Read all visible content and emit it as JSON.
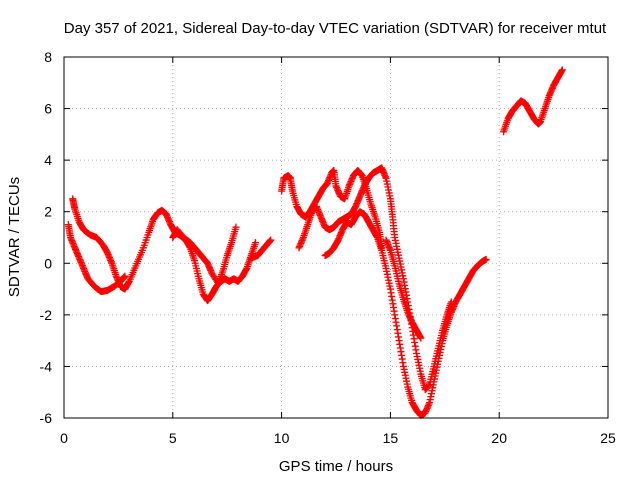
{
  "chart_data": {
    "type": "scatter",
    "title": "Day 357 of 2021, Sidereal Day-to-day VTEC variation (SDTVAR) for receiver mtut",
    "xlabel": "GPS time / hours",
    "ylabel": "SDTVAR / TECUs",
    "xlim": [
      0,
      25
    ],
    "ylim": [
      -6,
      8
    ],
    "xticks": [
      0,
      5,
      10,
      15,
      20,
      25
    ],
    "yticks": [
      -6,
      -4,
      -2,
      0,
      2,
      4,
      6,
      8
    ],
    "grid": true,
    "marker": "plus",
    "color": "#ff0000",
    "series": [
      {
        "segments": [
          [
            [
              0.2,
              1.5
            ],
            [
              0.3,
              1.0
            ],
            [
              0.5,
              0.6
            ],
            [
              0.7,
              0.2
            ],
            [
              0.9,
              -0.2
            ],
            [
              1.1,
              -0.6
            ],
            [
              1.4,
              -0.9
            ],
            [
              1.7,
              -1.1
            ],
            [
              2.0,
              -1.05
            ],
            [
              2.3,
              -0.9
            ],
            [
              2.6,
              -0.7
            ],
            [
              2.8,
              -0.5
            ]
          ],
          [
            [
              0.4,
              2.5
            ],
            [
              0.5,
              2.1
            ],
            [
              0.7,
              1.6
            ],
            [
              0.9,
              1.3
            ],
            [
              1.2,
              1.1
            ],
            [
              1.5,
              1.0
            ],
            [
              1.8,
              0.7
            ],
            [
              2.0,
              0.4
            ],
            [
              2.2,
              0.0
            ],
            [
              2.4,
              -0.5
            ],
            [
              2.6,
              -0.9
            ],
            [
              2.8,
              -1.0
            ],
            [
              3.0,
              -0.7
            ],
            [
              3.3,
              -0.1
            ],
            [
              3.6,
              0.5
            ],
            [
              3.9,
              1.2
            ],
            [
              4.1,
              1.7
            ],
            [
              4.3,
              1.95
            ],
            [
              4.5,
              2.05
            ],
            [
              4.7,
              1.9
            ],
            [
              4.9,
              1.5
            ],
            [
              5.1,
              1.2
            ],
            [
              5.3,
              1.1
            ],
            [
              5.6,
              0.9
            ],
            [
              5.8,
              0.6
            ],
            [
              6.0,
              0.1
            ],
            [
              6.2,
              -0.6
            ],
            [
              6.4,
              -1.2
            ],
            [
              6.6,
              -1.45
            ],
            [
              6.8,
              -1.2
            ],
            [
              7.0,
              -0.9
            ],
            [
              7.2,
              -0.7
            ],
            [
              7.4,
              -0.6
            ],
            [
              7.6,
              -0.7
            ],
            [
              7.8,
              -0.6
            ],
            [
              8.0,
              -0.7
            ],
            [
              8.2,
              -0.5
            ],
            [
              8.4,
              -0.2
            ],
            [
              8.6,
              0.3
            ],
            [
              8.8,
              0.8
            ]
          ],
          [
            [
              5.0,
              1.0
            ],
            [
              5.2,
              1.3
            ],
            [
              5.5,
              1.0
            ],
            [
              5.8,
              0.8
            ],
            [
              6.0,
              0.6
            ],
            [
              6.2,
              0.4
            ],
            [
              6.4,
              0.2
            ],
            [
              6.6,
              0.0
            ],
            [
              6.8,
              -0.4
            ],
            [
              7.1,
              -0.8
            ],
            [
              7.3,
              -0.3
            ],
            [
              7.5,
              0.3
            ],
            [
              7.7,
              0.8
            ],
            [
              7.9,
              1.4
            ]
          ],
          [
            [
              8.6,
              0.2
            ],
            [
              8.9,
              0.3
            ],
            [
              9.1,
              0.5
            ],
            [
              9.3,
              0.7
            ],
            [
              9.5,
              0.9
            ]
          ],
          [
            [
              10.0,
              2.8
            ],
            [
              10.1,
              3.3
            ],
            [
              10.3,
              3.4
            ],
            [
              10.4,
              3.3
            ],
            [
              10.5,
              2.8
            ],
            [
              10.7,
              2.2
            ],
            [
              10.9,
              1.9
            ],
            [
              11.1,
              1.8
            ],
            [
              11.3,
              2.0
            ],
            [
              11.5,
              2.3
            ],
            [
              11.7,
              2.6
            ],
            [
              11.9,
              2.9
            ],
            [
              12.1,
              3.1
            ],
            [
              12.3,
              3.5
            ],
            [
              12.4,
              3.6
            ],
            [
              12.5,
              3.0
            ],
            [
              12.7,
              2.6
            ],
            [
              12.9,
              2.5
            ],
            [
              13.1,
              3.0
            ],
            [
              13.3,
              3.4
            ],
            [
              13.5,
              3.6
            ],
            [
              13.7,
              3.4
            ],
            [
              13.9,
              2.9
            ],
            [
              14.1,
              2.3
            ],
            [
              14.3,
              1.8
            ],
            [
              14.5,
              1.2
            ],
            [
              14.6,
              0.6
            ]
          ],
          [
            [
              10.8,
              0.6
            ],
            [
              11.0,
              1.0
            ],
            [
              11.2,
              1.5
            ],
            [
              11.4,
              2.0
            ],
            [
              11.6,
              2.2
            ],
            [
              11.8,
              1.8
            ],
            [
              12.0,
              1.4
            ],
            [
              12.2,
              1.3
            ],
            [
              12.4,
              1.4
            ],
            [
              12.6,
              1.6
            ],
            [
              12.8,
              1.7
            ],
            [
              13.0,
              1.8
            ],
            [
              13.2,
              1.9
            ],
            [
              13.4,
              2.2
            ],
            [
              13.6,
              2.6
            ],
            [
              13.8,
              3.0
            ],
            [
              14.0,
              3.3
            ],
            [
              14.2,
              3.5
            ],
            [
              14.4,
              3.6
            ],
            [
              14.6,
              3.7
            ],
            [
              14.8,
              3.3
            ],
            [
              15.0,
              2.5
            ],
            [
              15.1,
              1.8
            ],
            [
              15.2,
              1.0
            ],
            [
              15.4,
              0.2
            ],
            [
              15.6,
              -0.6
            ],
            [
              15.8,
              -1.5
            ],
            [
              16.0,
              -2.5
            ],
            [
              16.2,
              -3.5
            ],
            [
              16.4,
              -4.3
            ],
            [
              16.6,
              -4.9
            ],
            [
              16.8,
              -4.7
            ],
            [
              17.0,
              -4.0
            ],
            [
              17.2,
              -3.3
            ],
            [
              17.4,
              -2.6
            ],
            [
              17.6,
              -2.0
            ],
            [
              17.8,
              -1.5
            ]
          ],
          [
            [
              12.0,
              0.3
            ],
            [
              12.2,
              0.4
            ],
            [
              12.4,
              0.6
            ],
            [
              12.6,
              0.9
            ],
            [
              12.8,
              1.3
            ],
            [
              13.0,
              1.6
            ],
            [
              13.2,
              1.5
            ],
            [
              13.4,
              1.8
            ],
            [
              13.6,
              2.0
            ],
            [
              13.8,
              1.9
            ],
            [
              14.0,
              1.6
            ],
            [
              14.2,
              1.3
            ],
            [
              14.4,
              1.0
            ],
            [
              14.6,
              0.5
            ],
            [
              14.8,
              -0.2
            ],
            [
              15.0,
              -1.0
            ],
            [
              15.2,
              -2.0
            ],
            [
              15.4,
              -3.0
            ],
            [
              15.6,
              -4.0
            ],
            [
              15.8,
              -4.8
            ],
            [
              16.0,
              -5.4
            ],
            [
              16.2,
              -5.7
            ],
            [
              16.4,
              -5.9
            ],
            [
              16.6,
              -5.8
            ],
            [
              16.8,
              -5.4
            ],
            [
              17.0,
              -4.6
            ],
            [
              17.2,
              -3.8
            ],
            [
              17.4,
              -3.0
            ],
            [
              17.6,
              -2.4
            ],
            [
              17.8,
              -1.9
            ],
            [
              18.0,
              -1.5
            ],
            [
              18.2,
              -1.2
            ],
            [
              18.4,
              -0.9
            ],
            [
              18.6,
              -0.6
            ],
            [
              18.8,
              -0.3
            ],
            [
              19.0,
              -0.1
            ],
            [
              19.2,
              0.05
            ],
            [
              19.4,
              0.15
            ]
          ],
          [
            [
              14.8,
              0.9
            ],
            [
              15.0,
              0.5
            ],
            [
              15.2,
              -0.1
            ],
            [
              15.4,
              -0.8
            ],
            [
              15.6,
              -1.4
            ],
            [
              15.8,
              -1.9
            ],
            [
              16.0,
              -2.3
            ],
            [
              16.2,
              -2.6
            ],
            [
              16.4,
              -2.9
            ]
          ],
          [
            [
              20.2,
              5.1
            ],
            [
              20.4,
              5.6
            ],
            [
              20.6,
              5.9
            ],
            [
              20.8,
              6.1
            ],
            [
              21.0,
              6.3
            ],
            [
              21.2,
              6.2
            ],
            [
              21.4,
              5.9
            ],
            [
              21.6,
              5.6
            ],
            [
              21.8,
              5.4
            ],
            [
              21.9,
              5.5
            ],
            [
              22.1,
              6.0
            ],
            [
              22.3,
              6.5
            ],
            [
              22.5,
              6.9
            ],
            [
              22.7,
              7.2
            ],
            [
              22.9,
              7.5
            ]
          ]
        ]
      }
    ]
  }
}
